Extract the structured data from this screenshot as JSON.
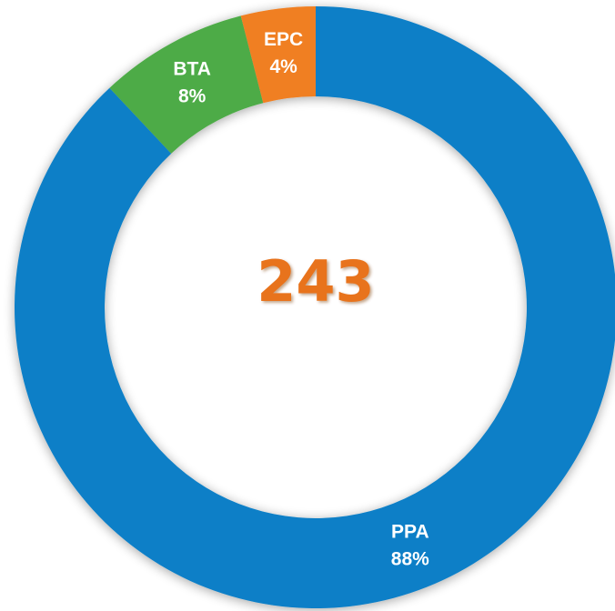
{
  "chart_data": {
    "type": "donut",
    "categories": [
      "PPA",
      "BTA",
      "EPC"
    ],
    "values": [
      88,
      8,
      4
    ],
    "value_labels": [
      "88%",
      "8%",
      "4%"
    ],
    "colors": [
      "#0a7fc7",
      "#4dab47",
      "#f07f22"
    ],
    "center_label": "243"
  }
}
